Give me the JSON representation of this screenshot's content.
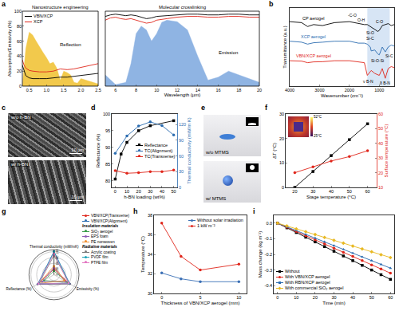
{
  "chart_data": [
    {
      "panel": "a",
      "type": "line",
      "xlabel": "Wavelength (µm)",
      "ylabel": "Absorptivity/Emissivity (%)",
      "segments": [
        {
          "xlim": [
            0.3,
            2.5
          ],
          "xticks": [
            0.5,
            {
              "value": 1,
              "label": "1.0"
            },
            1.5,
            {
              "value": 2,
              "label": "2.0"
            },
            2.5
          ]
        },
        {
          "xlim": [
            5,
            20
          ],
          "xticks": [
            6,
            8,
            10,
            12,
            14,
            16,
            18,
            20
          ]
        }
      ],
      "ylim": [
        0,
        100
      ],
      "yticks": [
        0,
        20,
        40,
        60,
        80,
        100
      ],
      "legend": "upper left",
      "series": [
        {
          "type": "area",
          "color": "#f2c94c",
          "x": [
            0.3,
            0.4,
            0.5,
            0.6,
            0.7,
            0.8,
            0.9,
            1.0,
            1.1,
            1.2,
            1.3,
            1.4,
            1.5,
            1.6,
            1.7,
            1.8,
            1.9,
            2.0,
            2.2,
            2.5
          ],
          "values": [
            0,
            50,
            72,
            68,
            60,
            52,
            45,
            38,
            30,
            32,
            24,
            8,
            20,
            18,
            15,
            5,
            4,
            10,
            7,
            3
          ]
        },
        {
          "type": "area",
          "color": "#8fb4e3",
          "x": [
            5,
            6,
            7,
            7.5,
            8,
            8.5,
            9,
            9.5,
            10,
            10.5,
            11,
            12,
            13,
            14,
            15,
            16,
            17,
            18,
            19,
            20
          ],
          "values": [
            15,
            2,
            5,
            30,
            70,
            80,
            75,
            60,
            70,
            85,
            88,
            86,
            75,
            40,
            8,
            12,
            20,
            15,
            10,
            5
          ]
        },
        {
          "name": "VBN/XCP",
          "color": "#000000",
          "x": [
            0.3,
            0.35,
            0.4,
            0.5,
            0.6,
            0.8,
            1.0,
            1.2,
            1.4,
            1.6,
            1.8,
            2.0,
            2.2,
            2.5,
            5,
            5.5,
            6,
            6.5,
            7,
            7.5,
            8,
            8.5,
            9,
            9.5,
            10,
            11,
            12,
            13,
            14,
            15,
            16,
            17,
            18,
            19,
            20
          ],
          "values": [
            28,
            20,
            14,
            11,
            10,
            10,
            10,
            11,
            12,
            12,
            13,
            14,
            15,
            17,
            93,
            95,
            96,
            95,
            94,
            95,
            94,
            92,
            90,
            91,
            93,
            94,
            95,
            96,
            96,
            95,
            95,
            96,
            96,
            95,
            95
          ]
        },
        {
          "name": "XCP",
          "color": "#e0261b",
          "x": [
            0.3,
            0.35,
            0.4,
            0.5,
            0.6,
            0.8,
            1.0,
            1.2,
            1.4,
            1.6,
            1.8,
            2.0,
            2.2,
            2.5,
            5,
            5.5,
            6,
            6.5,
            7,
            7.5,
            8,
            8.5,
            9,
            9.5,
            10,
            11,
            12,
            13,
            14,
            15,
            16,
            17,
            18,
            19,
            20
          ],
          "values": [
            35,
            28,
            24,
            21,
            20,
            19,
            19,
            20,
            23,
            22,
            23,
            25,
            27,
            30,
            88,
            91,
            92,
            90,
            89,
            90,
            88,
            86,
            84,
            85,
            88,
            90,
            92,
            93,
            93,
            92,
            92,
            93,
            93,
            92,
            92
          ]
        }
      ],
      "annotations": [
        {
          "text": "Nanostructure engineering",
          "x": 1.4,
          "y": 100
        },
        {
          "text": "Molecular crosslinking",
          "x": 12.5,
          "y": 100
        },
        {
          "text": "Reflection",
          "x": 1.7,
          "y": 55
        },
        {
          "text": "Emission",
          "x": 17,
          "y": 45
        }
      ]
    },
    {
      "panel": "b",
      "type": "line",
      "xlabel": "Wavenumber (cm⁻¹)",
      "ylabel": "Transmittance (a.u.)",
      "xlim": [
        4000,
        500
      ],
      "xticks": [
        4000,
        3000,
        2000,
        1000
      ],
      "ylim": [
        0,
        4
      ],
      "tick_labels": "x",
      "highlight": [
        1400,
        650
      ],
      "series": [
        {
          "name": "CP aerogel",
          "color": "#000000",
          "x": [
            4000,
            3600,
            3400,
            3200,
            2900,
            2500,
            2000,
            1700,
            1500,
            1400,
            1300,
            1270,
            1150,
            1050,
            1000,
            900,
            800,
            700,
            600,
            500
          ],
          "values": [
            3.3,
            3.25,
            3.05,
            3.15,
            3.1,
            3.25,
            3.3,
            3.2,
            3.15,
            3.15,
            3.05,
            3.0,
            2.9,
            2.8,
            2.85,
            3.1,
            3.15,
            3.2,
            3.1,
            3.15
          ]
        },
        {
          "name": "XCP aerogel",
          "color": "#2b6cb0",
          "x": [
            4000,
            3600,
            3400,
            3200,
            2900,
            2500,
            2000,
            1700,
            1500,
            1400,
            1300,
            1270,
            1150,
            1050,
            1000,
            900,
            800,
            700,
            600,
            500
          ],
          "values": [
            2.3,
            2.25,
            2.15,
            2.22,
            2.25,
            2.3,
            2.3,
            2.2,
            2.2,
            2.15,
            2.0,
            1.8,
            1.85,
            1.65,
            1.6,
            2.0,
            1.75,
            2.0,
            2.1,
            2.05
          ]
        },
        {
          "name": "VBN/XCP aerogel",
          "color": "#e0261b",
          "x": [
            4000,
            3600,
            3400,
            3200,
            2900,
            2500,
            2000,
            1700,
            1500,
            1400,
            1300,
            1270,
            1150,
            1050,
            1000,
            900,
            800,
            700,
            600,
            500
          ],
          "values": [
            1.3,
            1.28,
            1.2,
            1.24,
            1.25,
            1.3,
            1.3,
            1.25,
            1.2,
            0.55,
            0.75,
            0.8,
            0.65,
            0.6,
            0.55,
            0.9,
            0.4,
            0.9,
            1.0,
            0.95
          ]
        }
      ],
      "annotations": [
        {
          "text": "-C-O",
          "x": 1900,
          "y": 3.65
        },
        {
          "text": "O-H",
          "x": 1600,
          "y": 3.4
        },
        {
          "text": "C-O",
          "x": 1000,
          "y": 3.3
        },
        {
          "text": "Si-O",
          "x": 1300,
          "y": 2.72
        },
        {
          "text": "Si-C",
          "x": 1300,
          "y": 2.45
        },
        {
          "text": "Si-O-Si",
          "x": 1050,
          "y": 1.3
        },
        {
          "text": "Si-C",
          "x": 650,
          "y": 1.55
        },
        {
          "text": "ν B-N",
          "x": 1380,
          "y": 0.25
        },
        {
          "text": "δ B-N",
          "x": 800,
          "y": 0.15
        }
      ]
    },
    {
      "panel": "c",
      "type": "image",
      "images": [
        {
          "caption": "w/o h-BN",
          "scale_bar": "10 µm"
        },
        {
          "caption": "w/ h-BN",
          "scale_bar": "10 µm"
        }
      ]
    },
    {
      "panel": "d",
      "type": "line",
      "xlabel": "h-BN loading (wt%)",
      "ylabel": "Reflectance (%)",
      "y2label": "Thermal conductivity (mW/m K)",
      "xlim": [
        -3,
        53
      ],
      "xticks": [
        0,
        10,
        20,
        30,
        40,
        50
      ],
      "ylim": [
        78,
        100
      ],
      "yticks": [
        80,
        85,
        90,
        95,
        100
      ],
      "y2lim": [
        0,
        140
      ],
      "y2ticks": [
        0,
        30,
        60,
        90,
        120
      ],
      "legend": "right",
      "series": [
        {
          "name": "Reflectance",
          "color": "#000000",
          "marker": "square",
          "x": [
            0,
            5,
            10,
            20,
            30,
            50
          ],
          "values": [
            80.5,
            88,
            91.5,
            95,
            96.5,
            98
          ]
        },
        {
          "name": "TC(Alignment)",
          "color": "#2b6cb0",
          "marker": "circle",
          "axis": "y2",
          "x": [
            0,
            10,
            20,
            30,
            40,
            50
          ],
          "values": [
            65,
            98,
            117,
            125,
            118,
            100
          ]
        },
        {
          "name": "TC(Transverse)",
          "color": "#e0261b",
          "marker": "circle",
          "axis": "y2",
          "x": [
            0,
            10,
            20,
            30,
            40,
            50
          ],
          "values": [
            32,
            27,
            28,
            30,
            30,
            33
          ]
        }
      ]
    },
    {
      "panel": "e",
      "type": "image",
      "images": [
        {
          "caption": "w/o MTMS"
        },
        {
          "caption": "w/ MTMS"
        }
      ]
    },
    {
      "panel": "f",
      "type": "line",
      "xlabel": "Stage temperature (°C)",
      "ylabel": "ΔT (°C)",
      "y2label": "Surface temperature (°C)",
      "xlim": [
        15,
        65
      ],
      "xticks": [
        20,
        30,
        40,
        50,
        60
      ],
      "ylim": [
        0,
        30
      ],
      "yticks": [
        0,
        10,
        20,
        30
      ],
      "y2lim": [
        10,
        60
      ],
      "y2ticks": [
        10,
        20,
        30,
        40,
        50,
        60
      ],
      "series": [
        {
          "color": "#000000",
          "marker": "square",
          "x": [
            20,
            30,
            40,
            50,
            60
          ],
          "values": [
            0,
            6.5,
            13,
            19.5,
            26
          ]
        },
        {
          "color": "#e0261b",
          "marker": "circle",
          "axis": "y2",
          "x": [
            20,
            30,
            40,
            50,
            60
          ],
          "values": [
            20,
            24,
            28,
            31,
            35
          ]
        }
      ],
      "inset": {
        "colorbar_ticks": [
          {
            "value": 52,
            "label": "52°C"
          },
          {
            "value": 25,
            "label": "25°C"
          }
        ]
      }
    },
    {
      "panel": "g",
      "type": "radar",
      "axes": [
        "Thermal conductivity (mW/mK)",
        "Reflectance (%)",
        "Emissivity (%)"
      ],
      "rlim": [
        0,
        130
      ],
      "rticks": [
        0,
        30,
        60,
        90,
        120
      ],
      "legend": "upper right",
      "series": [
        {
          "name": "VBN/XCP(Transverse)",
          "color": "#e0261b",
          "values": [
            29,
            98,
            95
          ]
        },
        {
          "name": "VBN/XCP(Alignment)",
          "color": "#2b6cb0",
          "values": [
            121,
            98,
            95
          ]
        }
      ],
      "groups": [
        {
          "title": "Insulation materials",
          "series": [
            {
              "name": "SiO₂ aerogel",
              "color": "#3a9d4a",
              "values": [
                20,
                60,
                82
              ]
            },
            {
              "name": "EPS foam",
              "color": "#8e5bb5",
              "values": [
                35,
                72,
                70
              ]
            },
            {
              "name": "PE nonwoven",
              "color": "#f08c2e",
              "values": [
                45,
                90,
                62
              ]
            }
          ]
        },
        {
          "title": "Radiative materials",
          "series": [
            {
              "name": "Acrylic coating",
              "color": "#7a7a7a",
              "values": [
                100,
                90,
                93
              ]
            },
            {
              "name": "PVDF film",
              "color": "#17a2b8",
              "values": [
                120,
                92,
                90
              ]
            },
            {
              "name": "PTFE film",
              "color": "#e377c2",
              "values": [
                110,
                94,
                88
              ]
            }
          ]
        }
      ]
    },
    {
      "panel": "h",
      "type": "line",
      "xlabel": "Thickness of VBN/XCP aerogel (mm)",
      "ylabel": "Temperature (°C)",
      "xlim": [
        -1,
        11
      ],
      "xticks": [
        0,
        5,
        10
      ],
      "ylim": [
        30,
        38
      ],
      "yticks": [
        30,
        32,
        34,
        36,
        38
      ],
      "legend": "upper right",
      "series": [
        {
          "name": "Without solar irradiation",
          "color": "#3a6fb5",
          "marker": "circle",
          "x": [
            0,
            2.5,
            5,
            10
          ],
          "values": [
            32.1,
            31.5,
            31.2,
            31.2
          ]
        },
        {
          "name": "1 kW m⁻²",
          "color": "#e0261b",
          "marker": "circle",
          "x": [
            0,
            2.5,
            5,
            10
          ],
          "values": [
            37.2,
            33.8,
            32.4,
            33.0
          ]
        }
      ]
    },
    {
      "panel": "i",
      "type": "line",
      "xlabel": "Time (min)",
      "ylabel": "Mass change (kg m⁻²)",
      "xlim": [
        -2,
        62
      ],
      "xticks": [
        0,
        10,
        20,
        30,
        40,
        50,
        60
      ],
      "ylim": [
        -0.45,
        0.05
      ],
      "yticks": [
        {
          "value": 0,
          "label": "0.0"
        },
        -0.1,
        -0.2,
        -0.3,
        -0.4
      ],
      "legend": "lower left",
      "series": [
        {
          "name": "Without",
          "color": "#000000",
          "marker": "square",
          "x": [
            0,
            5,
            10,
            15,
            20,
            25,
            30,
            35,
            40,
            45,
            50,
            55,
            60
          ],
          "values": [
            0,
            -0.03,
            -0.06,
            -0.09,
            -0.12,
            -0.15,
            -0.18,
            -0.21,
            -0.24,
            -0.27,
            -0.3,
            -0.33,
            -0.36
          ]
        },
        {
          "name": "With VBN/XCP aerogel",
          "color": "#e0261b",
          "marker": "circle",
          "x": [
            0,
            5,
            10,
            15,
            20,
            25,
            30,
            35,
            40,
            45,
            50,
            55,
            60
          ],
          "values": [
            0,
            -0.027,
            -0.053,
            -0.08,
            -0.107,
            -0.133,
            -0.16,
            -0.187,
            -0.213,
            -0.24,
            -0.267,
            -0.293,
            -0.32
          ]
        },
        {
          "name": "With RBN/XCP aerogel",
          "color": "#2b6cb0",
          "marker": "triangle",
          "x": [
            0,
            5,
            10,
            15,
            20,
            25,
            30,
            35,
            40,
            45,
            50,
            55,
            60
          ],
          "values": [
            0,
            -0.024,
            -0.048,
            -0.072,
            -0.096,
            -0.12,
            -0.144,
            -0.168,
            -0.192,
            -0.216,
            -0.24,
            -0.264,
            -0.288
          ]
        },
        {
          "name": "With commercial SiO₂ aerogel",
          "color": "#e8b923",
          "marker": "diamond",
          "x": [
            0,
            5,
            10,
            15,
            20,
            25,
            30,
            35,
            40,
            45,
            50,
            55,
            60
          ],
          "values": [
            0,
            -0.018,
            -0.037,
            -0.055,
            -0.073,
            -0.092,
            -0.11,
            -0.128,
            -0.147,
            -0.165,
            -0.183,
            -0.202,
            -0.22
          ]
        }
      ]
    }
  ]
}
